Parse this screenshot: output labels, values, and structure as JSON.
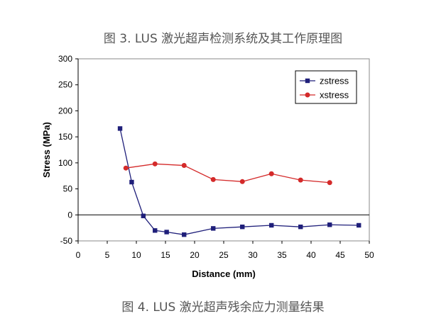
{
  "captions": {
    "top": "图 3. LUS 激光超声检测系统及其工作原理图",
    "bottom": "图 4. LUS 激光超声残余应力测量结果"
  },
  "chart_data": {
    "type": "line",
    "xlabel": "Distance (mm)",
    "ylabel": "Stress (MPa)",
    "xlim": [
      0,
      50
    ],
    "ylim": [
      -50,
      300
    ],
    "xticks": [
      0,
      5,
      10,
      15,
      20,
      25,
      30,
      35,
      40,
      45,
      50
    ],
    "yticks": [
      -50,
      0,
      50,
      100,
      150,
      200,
      250,
      300
    ],
    "grid": false,
    "legend_position": "top-right",
    "series": [
      {
        "name": "zstress",
        "color": "#1f1f7a",
        "marker": "square",
        "x": [
          7.2,
          9.2,
          11.2,
          13.2,
          15.2,
          18.2,
          23.2,
          28.2,
          33.2,
          38.2,
          43.2,
          48.2
        ],
        "y": [
          166,
          63,
          -2,
          -30,
          -33,
          -38,
          -26,
          -23,
          -20,
          -23,
          -19,
          -20
        ]
      },
      {
        "name": "xstress",
        "color": "#d42a2a",
        "marker": "circle",
        "x": [
          8.2,
          13.2,
          18.2,
          23.2,
          28.2,
          33.2,
          38.2,
          43.2
        ],
        "y": [
          90,
          98,
          95,
          68,
          64,
          79,
          67,
          62
        ]
      }
    ]
  }
}
